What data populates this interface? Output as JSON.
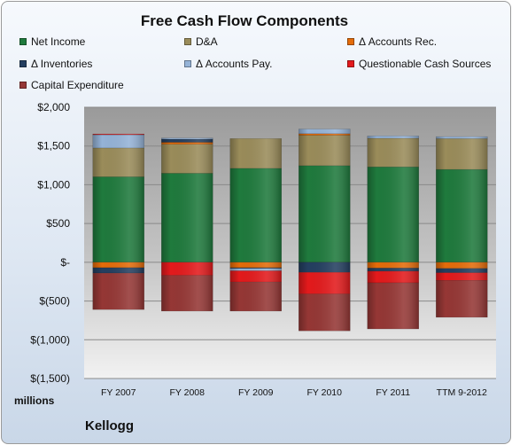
{
  "chart_data": {
    "type": "bar",
    "stacked": true,
    "title": "Free Cash Flow Components",
    "categories": [
      "FY 2007",
      "FY 2008",
      "FY 2009",
      "FY 2010",
      "FY 2011",
      "TTM 9-2012"
    ],
    "ylim": [
      -1500,
      2000
    ],
    "yticks": [
      2000,
      1500,
      1000,
      500,
      0,
      -500,
      -1000,
      -1500
    ],
    "ytick_labels": [
      "$2,000",
      "$1,500",
      "$1,000",
      "$500",
      "$-",
      "$(500)",
      "$(1,000)",
      "$(1,500)"
    ],
    "ylabel": "",
    "xlabel": "",
    "units_label": "millions",
    "grid": true,
    "legend_position": "top",
    "series": [
      {
        "name": "Net Income",
        "color": "#1f7a3d",
        "values": [
          1103,
          1148,
          1212,
          1247,
          1231,
          1198
        ]
      },
      {
        "name": "D&A",
        "color": "#9a8c5a",
        "values": [
          372,
          375,
          384,
          392,
          369,
          398
        ]
      },
      {
        "name": "Δ Accounts Rec.",
        "color": "#e46c0a",
        "values": [
          -70,
          25,
          -70,
          20,
          -75,
          -80
        ]
      },
      {
        "name": "Δ Inventories",
        "color": "#243f60",
        "values": [
          -70,
          40,
          -10,
          -130,
          -40,
          -55
        ]
      },
      {
        "name": "Δ Accounts Pay.",
        "color": "#95b3d7",
        "values": [
          170,
          15,
          -30,
          60,
          30,
          25
        ]
      },
      {
        "name": "Questionable Cash Sources",
        "color": "#e31a1c",
        "values": [
          10,
          -170,
          -145,
          -280,
          -150,
          -100
        ]
      },
      {
        "name": "Capital Expenditure",
        "color": "#953735",
        "values": [
          -470,
          -460,
          -375,
          -475,
          -595,
          -475
        ]
      }
    ]
  },
  "footer": {
    "company": "Kellogg"
  }
}
